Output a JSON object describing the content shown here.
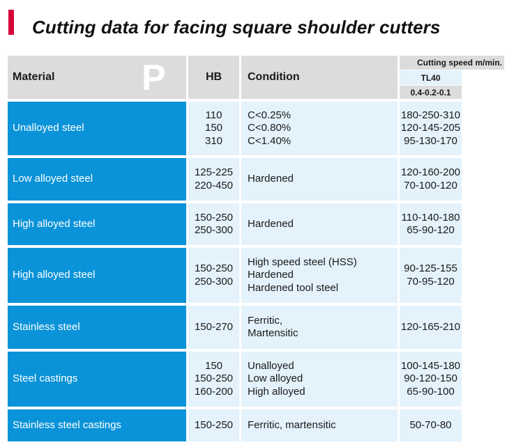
{
  "title": "Cutting data for facing square shoulder cutters",
  "colors": {
    "accent_bar": "#d4003a",
    "material_bg": "#0a93d8",
    "data_bg": "#e3f2fb",
    "header_bg": "#dcdcdc"
  },
  "header": {
    "material": "Material",
    "iso_letter": "P",
    "hb": "HB",
    "condition": "Condition",
    "cutting_speed": "Cutting speed m/min.",
    "tool": "TL40",
    "feed_values": "0.4-0.2-0.1"
  },
  "rows": [
    {
      "material": "Unalloyed steel",
      "hb": [
        "110",
        "150",
        "310"
      ],
      "condition": [
        "C<0.25%",
        "C<0.80%",
        "C<1.40%"
      ],
      "speed": [
        "180-250-310",
        "120-145-205",
        "95-130-170"
      ]
    },
    {
      "material": "Low alloyed steel",
      "hb": [
        "125-225",
        "220-450"
      ],
      "condition": [
        "Hardened"
      ],
      "speed": [
        "120-160-200",
        "70-100-120"
      ]
    },
    {
      "material": "High alloyed steel",
      "hb": [
        "150-250",
        "250-300"
      ],
      "condition": [
        "Hardened"
      ],
      "speed": [
        "110-140-180",
        "65-90-120"
      ]
    },
    {
      "material": "High alloyed steel",
      "hb": [
        "150-250",
        "250-300"
      ],
      "condition": [
        "High speed steel (HSS)",
        "Hardened",
        "Hardened tool steel"
      ],
      "speed": [
        "90-125-155",
        "70-95-120"
      ]
    },
    {
      "material": "Stainless steel",
      "hb": [
        "150-270"
      ],
      "condition": [
        "Ferritic,",
        "Martensitic"
      ],
      "speed": [
        "120-165-210"
      ]
    },
    {
      "material": "Steel castings",
      "hb": [
        "150",
        "150-250",
        "160-200"
      ],
      "condition": [
        "Unalloyed",
        "Low alloyed",
        "High alloyed"
      ],
      "speed": [
        "100-145-180",
        "90-120-150",
        "65-90-100"
      ]
    },
    {
      "material": "Stainless steel castings",
      "hb": [
        "150-250"
      ],
      "condition": [
        "Ferritic, martensitic"
      ],
      "speed": [
        "50-70-80"
      ]
    }
  ]
}
